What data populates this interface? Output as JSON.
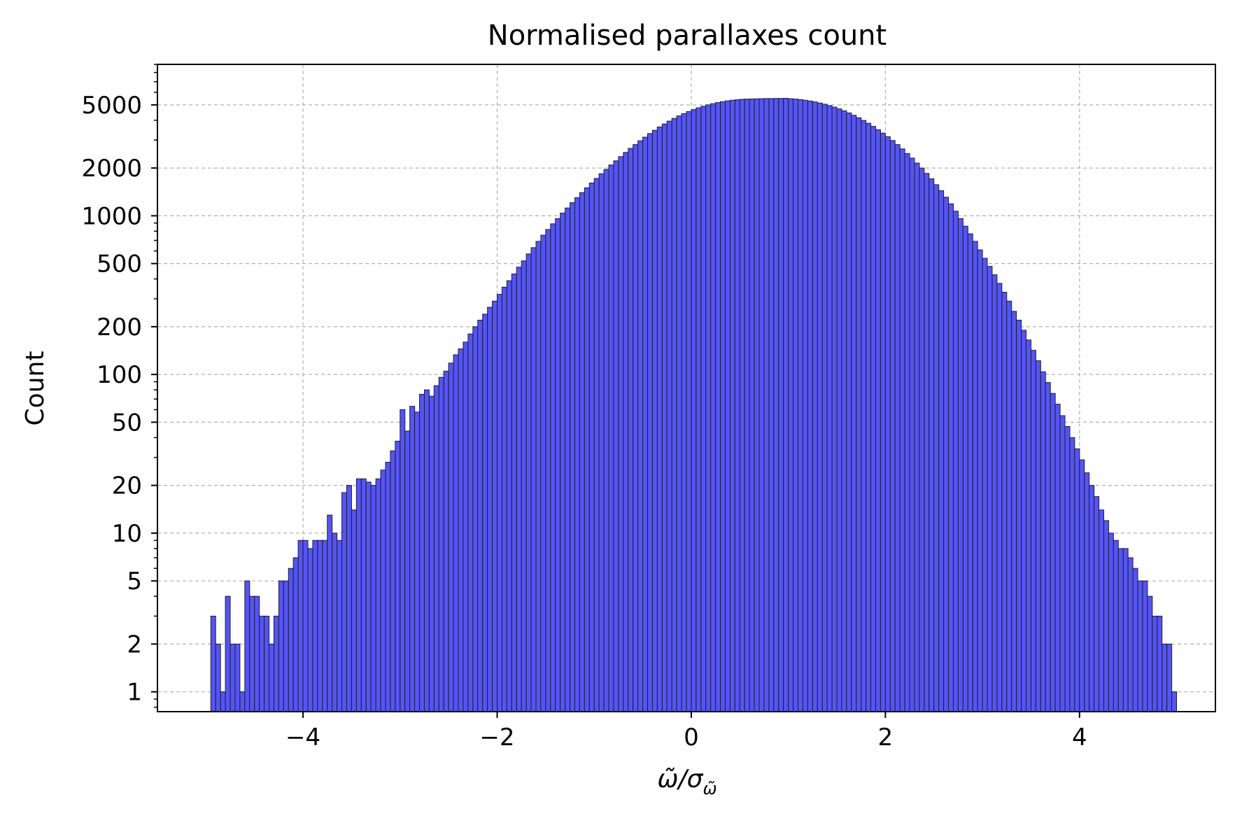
{
  "chart_data": {
    "type": "bar",
    "title": "Normalised parallaxes count",
    "xlabel": "ω̃/σ",
    "xlabel_sub": "ω̃",
    "ylabel": "Count",
    "yscale": "log",
    "xlim": [
      -5.5,
      5.4
    ],
    "ylim": [
      0.75,
      9000
    ],
    "grid": true,
    "bar_color": "#5555ee",
    "edge_color": "#1a1a4a",
    "bin_start": -4.95,
    "bin_width": 0.05,
    "xticks": [
      -4,
      -2,
      0,
      2,
      4
    ],
    "xtick_labels": [
      "−4",
      "−2",
      "0",
      "2",
      "4"
    ],
    "yticks": [
      1,
      2,
      5,
      10,
      20,
      50,
      100,
      200,
      500,
      1000,
      2000,
      5000
    ],
    "ytick_labels": [
      "1",
      "2",
      "5",
      "10",
      "20",
      "50",
      "100",
      "200",
      "500",
      "1000",
      "2000",
      "5000"
    ],
    "values": [
      3,
      2,
      1,
      4,
      2,
      2,
      1,
      5,
      4,
      4,
      3,
      3,
      2,
      3,
      5,
      5,
      6,
      7,
      9,
      9,
      8,
      9,
      9,
      9,
      13,
      10,
      9,
      18,
      20,
      14,
      22,
      22,
      21,
      20,
      22,
      25,
      28,
      33,
      38,
      60,
      44,
      63,
      58,
      75,
      80,
      73,
      85,
      96,
      105,
      118,
      133,
      145,
      160,
      180,
      200,
      220,
      240,
      265,
      290,
      320,
      355,
      390,
      430,
      475,
      520,
      575,
      630,
      690,
      755,
      820,
      890,
      960,
      1040,
      1120,
      1210,
      1300,
      1400,
      1500,
      1610,
      1720,
      1840,
      1960,
      2090,
      2220,
      2360,
      2510,
      2660,
      2810,
      2970,
      3130,
      3300,
      3460,
      3630,
      3790,
      3950,
      4110,
      4260,
      4400,
      4540,
      4670,
      4790,
      4900,
      5000,
      5090,
      5170,
      5240,
      5300,
      5350,
      5390,
      5420,
      5440,
      5450,
      5460,
      5470,
      5480,
      5480,
      5490,
      5490,
      5500,
      5470,
      5440,
      5400,
      5350,
      5290,
      5220,
      5140,
      5050,
      4950,
      4840,
      4720,
      4590,
      4450,
      4300,
      4150,
      3990,
      3830,
      3660,
      3490,
      3320,
      3150,
      2980,
      2810,
      2640,
      2470,
      2310,
      2150,
      2000,
      1850,
      1710,
      1570,
      1440,
      1310,
      1190,
      1070,
      960,
      860,
      770,
      690,
      610,
      540,
      480,
      425,
      375,
      330,
      290,
      250,
      220,
      190,
      165,
      142,
      122,
      104,
      89,
      76,
      65,
      55,
      47,
      40,
      34,
      29,
      24,
      20,
      17,
      14,
      12,
      10,
      9,
      8,
      8,
      7,
      6,
      5,
      5,
      4,
      3,
      3,
      2,
      2,
      1
    ]
  }
}
